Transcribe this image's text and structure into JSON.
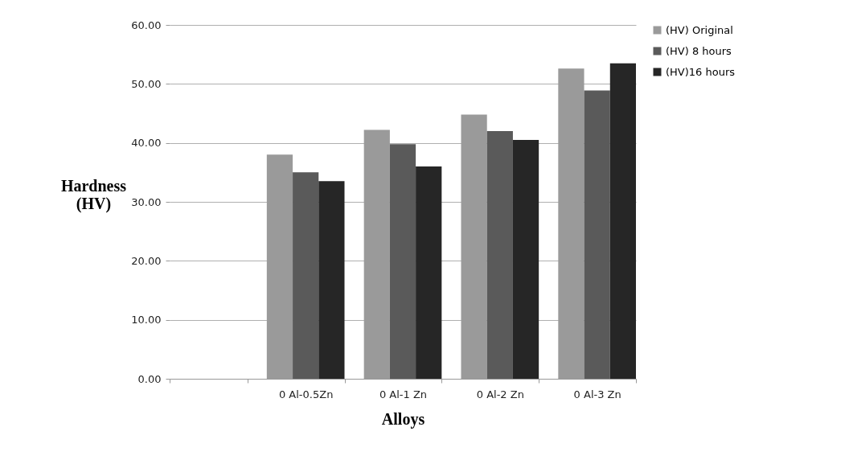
{
  "chart_data": {
    "type": "bar",
    "xlabel": "Alloys",
    "ylabel": "Hardness (HV)",
    "categories": [
      null,
      "0 Al-0.5Zn",
      "0 Al-1 Zn",
      "0 Al-2 Zn",
      "0 Al-3 Zn"
    ],
    "series": [
      {
        "name": "(HV) Original",
        "color": "#9a9a9a",
        "values": [
          null,
          38.0,
          42.2,
          44.8,
          52.6
        ]
      },
      {
        "name": "(HV) 8 hours",
        "color": "#5a5a5a",
        "values": [
          null,
          35.0,
          39.8,
          42.0,
          48.9
        ]
      },
      {
        "name": "(HV)16 hours",
        "color": "#262626",
        "values": [
          null,
          33.5,
          36.0,
          40.5,
          53.5
        ]
      }
    ],
    "ylim": [
      0,
      60
    ],
    "yticks": [
      {
        "value": 0,
        "label": "0.00"
      },
      {
        "value": 10,
        "label": "10.00"
      },
      {
        "value": 20,
        "label": "20.00"
      },
      {
        "value": 30,
        "label": "30.00"
      },
      {
        "value": 40,
        "label": "40.00"
      },
      {
        "value": 50,
        "label": "50.00"
      },
      {
        "value": 60,
        "label": "60.00"
      }
    ],
    "grid": "y",
    "legend": "right"
  }
}
